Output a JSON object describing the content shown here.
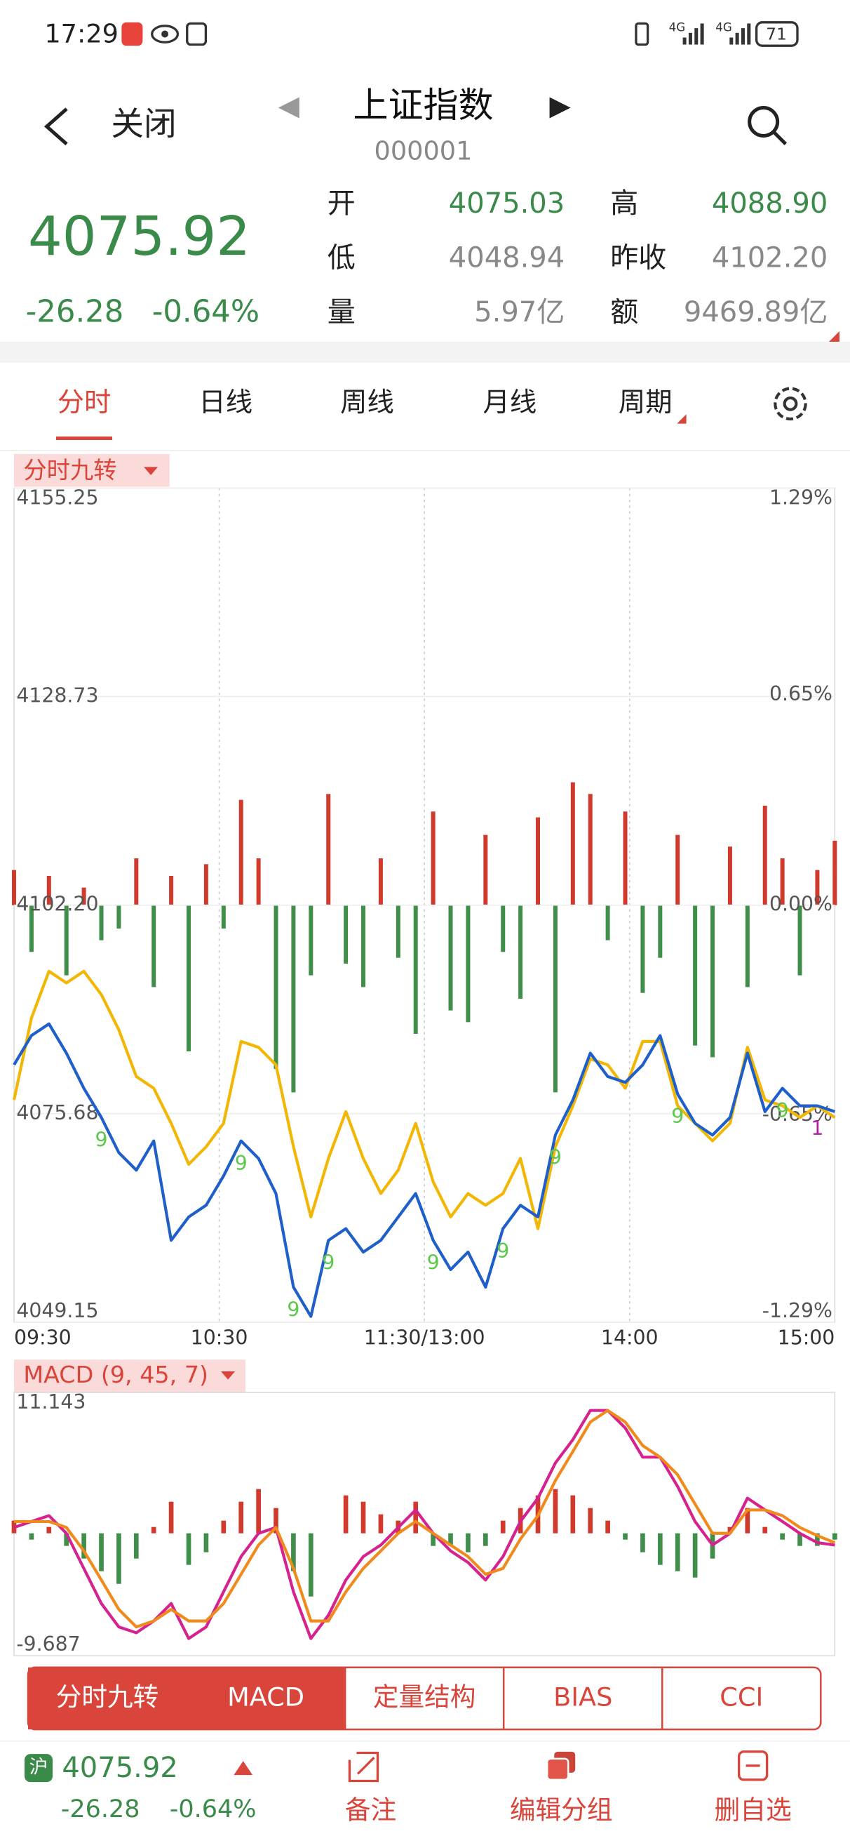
{
  "status_bar": {
    "time": "17:29",
    "net1": "4G",
    "net2": "4G",
    "battery": "71"
  },
  "header": {
    "back": "关闭",
    "title": "上证指数",
    "code": "000001"
  },
  "quote": {
    "price": "4075.92",
    "change": "-26.28",
    "change_pct": "-0.64%",
    "fields": [
      {
        "label": "开",
        "value": "4075.03",
        "color": "#3a8a4a"
      },
      {
        "label": "高",
        "value": "4088.90",
        "color": "#3a8a4a"
      },
      {
        "label": "低",
        "value": "4048.94",
        "color": "#888888"
      },
      {
        "label": "昨收",
        "value": "4102.20",
        "color": "#888888"
      },
      {
        "label": "量",
        "value": "5.97亿",
        "color": "#888888"
      },
      {
        "label": "额",
        "value": "9469.89亿",
        "color": "#888888"
      }
    ]
  },
  "tabs": {
    "items": [
      "分时",
      "日线",
      "周线",
      "月线",
      "周期"
    ],
    "active": 0
  },
  "chart_data": [
    {
      "type": "line",
      "title": "分时九转",
      "ylim": [
        4049.15,
        4155.25
      ],
      "yticks": [
        4155.25,
        4128.73,
        {
          "value": 4102.2,
          "label": "4102.20"
        },
        4075.68,
        4049.15
      ],
      "y2lim": [
        -1.29,
        1.29
      ],
      "y2ticks": [
        {
          "value": 1.29,
          "label": "1.29%"
        },
        {
          "value": 0.65,
          "label": "0.65%"
        },
        {
          "value": 0,
          "label": "0.00%"
        },
        {
          "value": -0.65,
          "label": "-0.65%"
        },
        {
          "value": -1.29,
          "label": "-1.29%"
        }
      ],
      "xtick_labels": [
        "09:30",
        "10:30",
        "11:30/13:00",
        "14:00",
        "15:00"
      ],
      "series": [
        {
          "color": "#1f5fc9",
          "values": [
            4081.89,
            4085.61,
            4087.09,
            4083.37,
            4078.91,
            4075.19,
            4070.73,
            4068.49,
            4072.21,
            4059.57,
            4062.54,
            4064.03,
            4067.75,
            4072.21,
            4069.98,
            4065.52,
            4053.61,
            4049.89,
            4059.57,
            4061.05,
            4058.08,
            4059.57,
            4062.54,
            4065.52,
            4059.57,
            4055.85,
            4058.08,
            4053.61,
            4061.05,
            4064.03,
            4062.54,
            4072.96,
            4077.42,
            4083.37,
            4080.4,
            4079.65,
            4081.89,
            4085.61,
            4078.17,
            4074.45,
            4072.96,
            4075.19,
            4083.37,
            4075.93,
            4078.91,
            4076.68,
            4076.68,
            4075.93
          ]
        },
        {
          "color": "#f2b705",
          "values": [
            4077.42,
            4087.84,
            4093.79,
            4092.3,
            4093.79,
            4090.81,
            4086.35,
            4080.4,
            4078.91,
            4074.45,
            4069.24,
            4071.47,
            4074.45,
            4084.86,
            4084.12,
            4081.89,
            4071.47,
            4062.54,
            4069.98,
            4075.93,
            4069.98,
            4065.52,
            4068.49,
            4074.45,
            4067.01,
            4062.54,
            4065.52,
            4064.03,
            4065.52,
            4069.98,
            4061.05,
            4071.47,
            4076.68,
            4082.63,
            4081.89,
            4078.91,
            4084.86,
            4084.86,
            4076.68,
            4074.45,
            4072.21,
            4074.45,
            4084.12,
            4077.42,
            4076.68,
            4075.19,
            4076.68,
            4075.19
          ]
        }
      ],
      "flow": {
        "up_color": "#d0392b",
        "down_color": "#3f8f4a",
        "values": [
          30,
          -40,
          25,
          -60,
          15,
          -30,
          -20,
          40,
          -70,
          25,
          -125,
          35,
          -20,
          90,
          40,
          -140,
          -160,
          -60,
          95,
          -50,
          -70,
          40,
          -45,
          -110,
          80,
          -90,
          -100,
          60,
          -40,
          -80,
          75,
          -160,
          105,
          95,
          -30,
          80,
          -75,
          -45,
          60,
          -120,
          -130,
          50,
          -70,
          85,
          40,
          -60,
          30,
          55
        ]
      },
      "nine_turn": [
        {
          "label": "9",
          "point": 5,
          "color": "#5cc94a"
        },
        {
          "label": "9",
          "point": 13,
          "color": "#5cc94a"
        },
        {
          "label": "9",
          "point": 16,
          "color": "#5cc94a"
        },
        {
          "label": "9",
          "point": 18,
          "color": "#5cc94a"
        },
        {
          "label": "9",
          "point": 24,
          "color": "#5cc94a"
        },
        {
          "label": "9",
          "point": 28,
          "color": "#5cc94a"
        },
        {
          "label": "9",
          "point": 31,
          "color": "#5cc94a"
        },
        {
          "label": "9",
          "point": 38,
          "color": "#5cc94a"
        },
        {
          "label": "9",
          "point": 44,
          "color": "#5cc94a"
        },
        {
          "label": "1",
          "point": 46,
          "color": "#b0209a"
        }
      ]
    },
    {
      "type": "macd",
      "title": "MACD (9, 45, 7)",
      "ylim": [
        -9.687,
        11.143
      ],
      "yticks": [
        11.143,
        -9.687
      ],
      "series": [
        {
          "color": "#d6228f",
          "values": [
            0.46,
            0.93,
            1.39,
            0,
            -2.78,
            -5.56,
            -7.41,
            -7.87,
            -6.94,
            -5.56,
            -8.33,
            -7.41,
            -4.63,
            -1.85,
            0,
            0.46,
            -4.63,
            -8.33,
            -6.48,
            -3.7,
            -1.85,
            -0.93,
            0.46,
            1.85,
            0,
            -1.39,
            -2.31,
            -3.7,
            -1.85,
            0.93,
            2.78,
            5.56,
            7.41,
            9.72,
            9.72,
            8.33,
            6.02,
            6.02,
            3.7,
            0.93,
            -0.93,
            0,
            2.78,
            1.85,
            0.93,
            0,
            -0.74,
            -0.93
          ]
        },
        {
          "color": "#f08a1c",
          "values": [
            0.93,
            0.93,
            0.93,
            0.46,
            -1.39,
            -3.7,
            -6.02,
            -7.41,
            -6.94,
            -6.02,
            -6.94,
            -6.94,
            -5.56,
            -3.24,
            -0.93,
            0.46,
            -2.78,
            -6.94,
            -6.94,
            -4.63,
            -2.78,
            -1.39,
            0,
            0.93,
            0,
            -0.93,
            -1.85,
            -3.24,
            -2.78,
            -0.46,
            1.39,
            4.17,
            6.48,
            8.8,
            9.72,
            8.8,
            6.94,
            6.02,
            4.63,
            2.31,
            0,
            0,
            1.85,
            1.85,
            1.39,
            0.46,
            -0.19,
            -0.74
          ]
        }
      ],
      "histogram": {
        "up_color": "#d0392b",
        "down_color": "#3f8f4a",
        "values": [
          1,
          -0.5,
          0.5,
          -1,
          -2,
          -3,
          -4,
          -2,
          0.5,
          2.5,
          -2.5,
          -1.5,
          1,
          2.5,
          3.5,
          2,
          -3,
          -5,
          0,
          3,
          2.5,
          1.5,
          1,
          2.5,
          -1,
          -1,
          -1.5,
          -1,
          1,
          2,
          3,
          3.5,
          3,
          2,
          1,
          -0.5,
          -1.5,
          -2.5,
          -3,
          -3.5,
          -2,
          0.5,
          2,
          0.5,
          -0.5,
          -1,
          -1,
          -0.5
        ]
      }
    }
  ],
  "indicator_tabs": {
    "items": [
      "分时九转",
      "MACD",
      "定量结构",
      "BIAS",
      "CCI"
    ],
    "active": [
      0,
      1
    ]
  },
  "footer": {
    "market": "沪",
    "price": "4075.92",
    "change": "-26.28",
    "change_pct": "-0.64%",
    "actions": [
      "备注",
      "编辑分组",
      "删自选"
    ]
  }
}
